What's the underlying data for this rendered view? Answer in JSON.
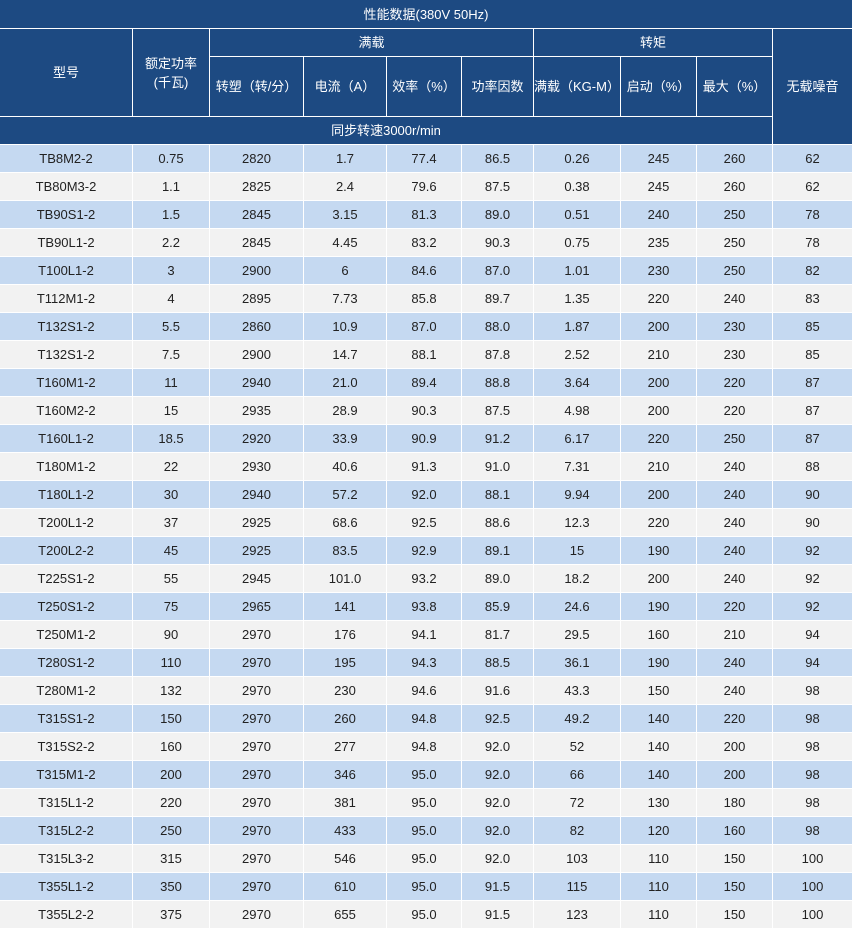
{
  "header": {
    "title": "性能数据(380V 50Hz)",
    "model": "型号",
    "power": "额定功率\n(千瓦)",
    "full_load": "满载",
    "torque": "转矩",
    "noise": "无载噪音",
    "sub": [
      "转塑（转/分）",
      "电流（A）",
      "效率（%）",
      "功率因数",
      "满载（KG-M）",
      "启动（%）",
      "最大（%）"
    ],
    "sync": "同步转速3000r/min"
  },
  "table": {
    "rows": [
      [
        "TB8M2-2",
        "0.75",
        "2820",
        "1.7",
        "77.4",
        "86.5",
        "0.26",
        "245",
        "260",
        "62"
      ],
      [
        "TB80M3-2",
        "1.1",
        "2825",
        "2.4",
        "79.6",
        "87.5",
        "0.38",
        "245",
        "260",
        "62"
      ],
      [
        "TB90S1-2",
        "1.5",
        "2845",
        "3.15",
        "81.3",
        "89.0",
        "0.51",
        "240",
        "250",
        "78"
      ],
      [
        "TB90L1-2",
        "2.2",
        "2845",
        "4.45",
        "83.2",
        "90.3",
        "0.75",
        "235",
        "250",
        "78"
      ],
      [
        "T100L1-2",
        "3",
        "2900",
        "6",
        "84.6",
        "87.0",
        "1.01",
        "230",
        "250",
        "82"
      ],
      [
        "T112M1-2",
        "4",
        "2895",
        "7.73",
        "85.8",
        "89.7",
        "1.35",
        "220",
        "240",
        "83"
      ],
      [
        "T132S1-2",
        "5.5",
        "2860",
        "10.9",
        "87.0",
        "88.0",
        "1.87",
        "200",
        "230",
        "85"
      ],
      [
        "T132S1-2",
        "7.5",
        "2900",
        "14.7",
        "88.1",
        "87.8",
        "2.52",
        "210",
        "230",
        "85"
      ],
      [
        "T160M1-2",
        "11",
        "2940",
        "21.0",
        "89.4",
        "88.8",
        "3.64",
        "200",
        "220",
        "87"
      ],
      [
        "T160M2-2",
        "15",
        "2935",
        "28.9",
        "90.3",
        "87.5",
        "4.98",
        "200",
        "220",
        "87"
      ],
      [
        "T160L1-2",
        "18.5",
        "2920",
        "33.9",
        "90.9",
        "91.2",
        "6.17",
        "220",
        "250",
        "87"
      ],
      [
        "T180M1-2",
        "22",
        "2930",
        "40.6",
        "91.3",
        "91.0",
        "7.31",
        "210",
        "240",
        "88"
      ],
      [
        "T180L1-2",
        "30",
        "2940",
        "57.2",
        "92.0",
        "88.1",
        "9.94",
        "200",
        "240",
        "90"
      ],
      [
        "T200L1-2",
        "37",
        "2925",
        "68.6",
        "92.5",
        "88.6",
        "12.3",
        "220",
        "240",
        "90"
      ],
      [
        "T200L2-2",
        "45",
        "2925",
        "83.5",
        "92.9",
        "89.1",
        "15",
        "190",
        "240",
        "92"
      ],
      [
        "T225S1-2",
        "55",
        "2945",
        "101.0",
        "93.2",
        "89.0",
        "18.2",
        "200",
        "240",
        "92"
      ],
      [
        "T250S1-2",
        "75",
        "2965",
        "141",
        "93.8",
        "85.9",
        "24.6",
        "190",
        "220",
        "92"
      ],
      [
        "T250M1-2",
        "90",
        "2970",
        "176",
        "94.1",
        "81.7",
        "29.5",
        "160",
        "210",
        "94"
      ],
      [
        "T280S1-2",
        "110",
        "2970",
        "195",
        "94.3",
        "88.5",
        "36.1",
        "190",
        "240",
        "94"
      ],
      [
        "T280M1-2",
        "132",
        "2970",
        "230",
        "94.6",
        "91.6",
        "43.3",
        "150",
        "240",
        "98"
      ],
      [
        "T315S1-2",
        "150",
        "2970",
        "260",
        "94.8",
        "92.5",
        "49.2",
        "140",
        "220",
        "98"
      ],
      [
        "T315S2-2",
        "160",
        "2970",
        "277",
        "94.8",
        "92.0",
        "52",
        "140",
        "200",
        "98"
      ],
      [
        "T315M1-2",
        "200",
        "2970",
        "346",
        "95.0",
        "92.0",
        "66",
        "140",
        "200",
        "98"
      ],
      [
        "T315L1-2",
        "220",
        "2970",
        "381",
        "95.0",
        "92.0",
        "72",
        "130",
        "180",
        "98"
      ],
      [
        "T315L2-2",
        "250",
        "2970",
        "433",
        "95.0",
        "92.0",
        "82",
        "120",
        "160",
        "98"
      ],
      [
        "T315L3-2",
        "315",
        "2970",
        "546",
        "95.0",
        "92.0",
        "103",
        "110",
        "150",
        "100"
      ],
      [
        "T355L1-2",
        "350",
        "2970",
        "610",
        "95.0",
        "91.5",
        "115",
        "110",
        "150",
        "100"
      ],
      [
        "T355L2-2",
        "375",
        "2970",
        "655",
        "95.0",
        "91.5",
        "123",
        "110",
        "150",
        "100"
      ]
    ]
  }
}
